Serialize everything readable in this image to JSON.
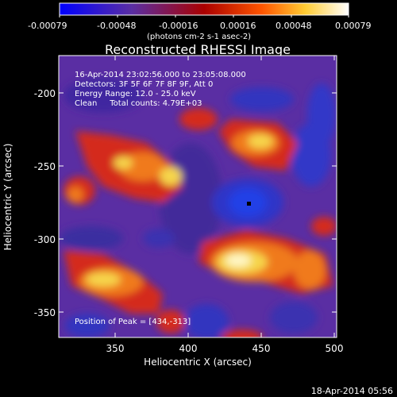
{
  "colorbar": {
    "tick_labels": [
      "-0.00079",
      "-0.00048",
      "-0.00016",
      "0.00016",
      "0.00048",
      "0.00079"
    ],
    "unit_label": "(photons cm-2 s-1 asec-2)"
  },
  "title": "Reconstructed RHESSI Image",
  "info": {
    "time": "16-Apr-2014 23:02:56.000 to 23:05:08.000",
    "detectors": "Detectors: 3F 5F 6F 7F 8F 9F, Att 0",
    "energy": "Energy Range: 12.0 - 25.0 keV",
    "clean": "Clean     Total counts: 4.79E+03",
    "peak": "Position of Peak = [434,-313]"
  },
  "footer_timestamp": "18-Apr-2014 05:56",
  "chart_data": {
    "type": "heatmap",
    "title": "Reconstructed RHESSI Image",
    "xlabel": "Heliocentric X (arcsec)",
    "ylabel": "Heliocentric Y (arcsec)",
    "xlim": [
      312,
      502
    ],
    "ylim": [
      -375,
      -180
    ],
    "x_ticks": [
      350,
      400,
      450,
      500
    ],
    "y_ticks": [
      -200,
      -250,
      -300,
      -350
    ],
    "colorbar_range": [
      -0.00079,
      0.00079
    ],
    "peak_position": [
      434,
      -313
    ],
    "marker_position": [
      442,
      -275
    ],
    "colors": {
      "blue": "#2a37d9",
      "violet": "#5a2ea3",
      "purple": "#6a2fa8",
      "red": "#d42b1a",
      "orange": "#f07a1c",
      "yellow": "#f6d54c",
      "white": "#fff7c6"
    }
  }
}
